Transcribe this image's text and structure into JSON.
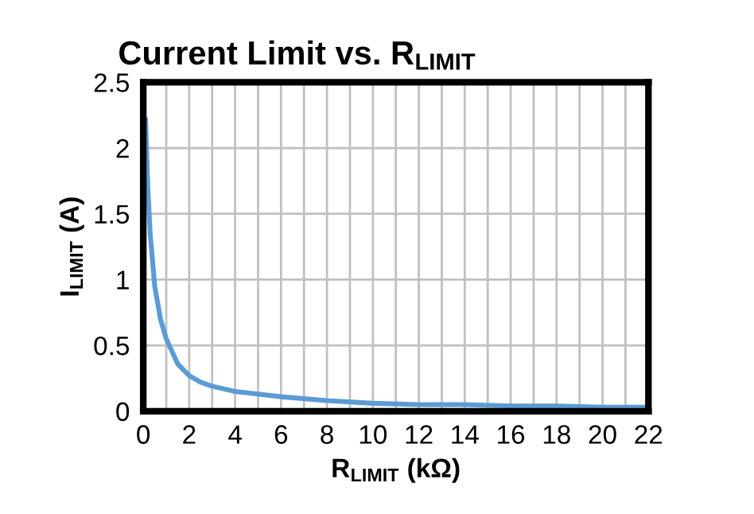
{
  "chart_data": {
    "type": "line",
    "title": "Current Limit vs. R$_{LIMIT}$",
    "xlabel": "R$_{LIMIT}$ (kΩ)",
    "ylabel": "I$_{LIMIT}$ (A)",
    "series": [
      {
        "color": "#5b9bd5",
        "x": [
          0.1,
          0.2,
          0.3,
          0.5,
          0.75,
          1,
          1.5,
          2,
          2.5,
          3,
          4,
          5,
          6,
          8,
          10,
          12,
          14,
          16,
          18,
          20,
          22
        ],
        "values": [
          2.22,
          1.7,
          1.35,
          0.95,
          0.7,
          0.55,
          0.36,
          0.27,
          0.22,
          0.19,
          0.15,
          0.13,
          0.11,
          0.08,
          0.06,
          0.05,
          0.05,
          0.04,
          0.04,
          0.03,
          0.03
        ]
      }
    ],
    "xlim": [
      0,
      22
    ],
    "ylim": [
      0,
      2.5
    ],
    "xticks": [
      0,
      {
        "value": 1,
        "label": null
      },
      2,
      {
        "value": 3,
        "label": null
      },
      4,
      {
        "value": 5,
        "label": null
      },
      6,
      {
        "value": 7,
        "label": null
      },
      8,
      {
        "value": 9,
        "label": null
      },
      10,
      {
        "value": 11,
        "label": null
      },
      12,
      {
        "value": 13,
        "label": null
      },
      14,
      {
        "value": 15,
        "label": null
      },
      16,
      {
        "value": 17,
        "label": null
      },
      18,
      {
        "value": 19,
        "label": null
      },
      20,
      {
        "value": 21,
        "label": null
      },
      22
    ],
    "yticks": [
      0,
      0.5,
      1,
      1.5,
      2,
      2.5
    ],
    "grid": true,
    "marker": "none",
    "line_style": "solid"
  }
}
